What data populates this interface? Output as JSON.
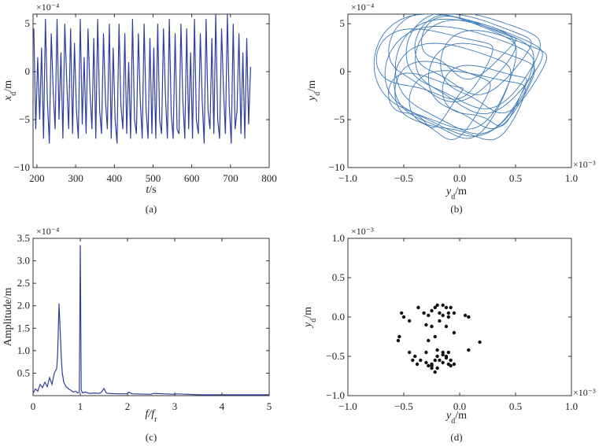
{
  "chart_data": [
    {
      "id": "a",
      "type": "line",
      "caption": "(a)",
      "xlabel": "t/s",
      "ylabel": "x_d/m",
      "y_exponent": "×10⁻⁴",
      "xlim": [
        190,
        800
      ],
      "ylim": [
        -10,
        6
      ],
      "xticks": [
        200,
        300,
        400,
        500,
        600,
        700,
        800
      ],
      "yticks": [
        -10,
        -5,
        0,
        5
      ],
      "color": "#2f3f9e",
      "series": [
        {
          "x": [
            192,
            197,
            202,
            207,
            212,
            217,
            222,
            227,
            232,
            237,
            242,
            247,
            252,
            257,
            262,
            267,
            272,
            277,
            282,
            287,
            292,
            297,
            302,
            307,
            312,
            317,
            322,
            327,
            332,
            337,
            342,
            347,
            352,
            357,
            362,
            367,
            372,
            377,
            382,
            387,
            392,
            397,
            402,
            407,
            412,
            417,
            422,
            427,
            432,
            437,
            442,
            447,
            452,
            457,
            462,
            467,
            472,
            477,
            482,
            487,
            492,
            497,
            502,
            507,
            512,
            517,
            522,
            527,
            532,
            537,
            542,
            547,
            552,
            557,
            562,
            567,
            572,
            577,
            582,
            587,
            592,
            597,
            602,
            607,
            612,
            617,
            622,
            627,
            632,
            637,
            642,
            647,
            652,
            657,
            662,
            667,
            672,
            677,
            682,
            687,
            692,
            697,
            702,
            707,
            712,
            717,
            722,
            727,
            732,
            737,
            742,
            747,
            752
          ],
          "y": [
            4.5,
            -6,
            1.5,
            -5,
            2.5,
            -7,
            5.5,
            -3,
            -7.5,
            4,
            -2,
            -6,
            5.5,
            -5,
            2,
            -7,
            5,
            -1,
            -6,
            4.5,
            -6.5,
            3,
            -4,
            -7,
            5.5,
            -5.5,
            1.5,
            -6.5,
            4.5,
            -2,
            -6,
            3.5,
            -7,
            5.5,
            -4,
            -6.5,
            4,
            -3,
            -6,
            5,
            -7,
            2.5,
            -5,
            -7.5,
            5,
            -3.5,
            -6,
            4,
            -6.5,
            1,
            -7,
            5.5,
            -5,
            -6.5,
            4,
            -3,
            -7,
            5,
            -4,
            -7,
            3.5,
            -6.5,
            2.5,
            -7,
            5,
            -5,
            -6.5,
            4.5,
            -2.5,
            -7,
            5.5,
            -4.5,
            -7,
            4,
            -6,
            -6.5,
            5,
            -3,
            -7,
            4.5,
            -6,
            2,
            -7,
            5.5,
            -5,
            -6.5,
            4,
            -3,
            -7.5,
            5.5,
            -4,
            -6,
            3.5,
            -6.5,
            6,
            -5,
            -7,
            4.5,
            -2,
            -6.5,
            6,
            -3.5,
            -7.5,
            5,
            -6,
            -4,
            4,
            -6.5,
            2,
            -7,
            3.5,
            -5.5,
            0.5
          ]
        }
      ]
    },
    {
      "id": "b",
      "type": "line",
      "caption": "(b)",
      "xlabel": "y_d/m",
      "ylabel": "y_d/m",
      "x_exponent": "×10⁻³",
      "y_exponent": "×10⁻⁴",
      "xlim": [
        -1.0,
        1.0
      ],
      "ylim": [
        -10,
        6
      ],
      "xticks": [
        -1.0,
        -0.5,
        0.0,
        0.5,
        1.0
      ],
      "yticks": [
        -10,
        -5,
        0,
        5
      ],
      "color": "#3d7ab8",
      "loops": [
        {
          "cx": 0.0,
          "cy": -1.0,
          "rx": 0.65,
          "ry": 5.5
        },
        {
          "cx": 0.05,
          "cy": -0.5,
          "rx": 0.6,
          "ry": 5.8
        },
        {
          "cx": -0.1,
          "cy": 1.5,
          "rx": 0.55,
          "ry": 4.2
        },
        {
          "cx": 0.1,
          "cy": 1.8,
          "rx": 0.5,
          "ry": 3.8
        },
        {
          "cx": 0.15,
          "cy": 0.5,
          "rx": 0.55,
          "ry": 4.5
        },
        {
          "cx": -0.05,
          "cy": -2.0,
          "rx": 0.5,
          "ry": 4.8
        },
        {
          "cx": -0.15,
          "cy": -3.0,
          "rx": 0.4,
          "ry": 3.8
        },
        {
          "cx": 0.2,
          "cy": -1.5,
          "rx": 0.45,
          "ry": 4.2
        },
        {
          "cx": -0.3,
          "cy": -3.0,
          "rx": 0.3,
          "ry": 2.5
        },
        {
          "cx": 0.3,
          "cy": 0.0,
          "rx": 0.45,
          "ry": 4.0
        },
        {
          "cx": 0.05,
          "cy": 2.5,
          "rx": 0.4,
          "ry": 2.8
        },
        {
          "cx": -0.2,
          "cy": 0.8,
          "rx": 0.5,
          "ry": 3.5
        },
        {
          "cx": 0.1,
          "cy": -3.5,
          "rx": 0.5,
          "ry": 3.5
        },
        {
          "cx": 0.25,
          "cy": -2.5,
          "rx": 0.35,
          "ry": 3.0
        },
        {
          "cx": -0.1,
          "cy": 0.0,
          "rx": 0.62,
          "ry": 6.0
        },
        {
          "cx": 0.12,
          "cy": 1.2,
          "rx": 0.58,
          "ry": 4.8
        }
      ]
    },
    {
      "id": "c",
      "type": "line",
      "caption": "(c)",
      "xlabel": "f/f_r",
      "ylabel": "Amplitude/m",
      "y_exponent": "×10⁻⁴",
      "xlim": [
        0,
        5
      ],
      "ylim": [
        0,
        3.5
      ],
      "xticks": [
        0,
        1,
        2,
        3,
        4,
        5
      ],
      "yticks": [
        0.5,
        1.0,
        1.5,
        2.0,
        2.5,
        3.0,
        3.5
      ],
      "color": "#2f3f9e",
      "series": [
        {
          "x": [
            0,
            0.05,
            0.1,
            0.15,
            0.2,
            0.25,
            0.3,
            0.35,
            0.4,
            0.45,
            0.5,
            0.52,
            0.55,
            0.58,
            0.6,
            0.62,
            0.65,
            0.7,
            0.75,
            0.8,
            0.85,
            0.9,
            0.95,
            0.98,
            1.0,
            1.02,
            1.05,
            1.1,
            1.2,
            1.3,
            1.4,
            1.45,
            1.5,
            1.55,
            1.6,
            1.8,
            2.0,
            2.02,
            2.1,
            2.5,
            2.55,
            3.0,
            3.02,
            3.5,
            4.0,
            4.5,
            5.0
          ],
          "y": [
            0.05,
            0.15,
            0.1,
            0.25,
            0.18,
            0.3,
            0.2,
            0.4,
            0.25,
            0.5,
            0.6,
            0.9,
            2.05,
            1.3,
            0.8,
            0.5,
            0.3,
            0.2,
            0.15,
            0.12,
            0.08,
            0.1,
            0.06,
            0.08,
            3.35,
            0.12,
            0.06,
            0.08,
            0.05,
            0.06,
            0.05,
            0.08,
            0.16,
            0.06,
            0.05,
            0.04,
            0.04,
            0.08,
            0.04,
            0.03,
            0.05,
            0.03,
            0.04,
            0.02,
            0.02,
            0.02,
            0.02
          ]
        }
      ]
    },
    {
      "id": "d",
      "type": "scatter",
      "caption": "(d)",
      "xlabel": "y_d/m",
      "ylabel": "y_d/m",
      "x_exponent": "×10⁻³",
      "y_exponent": "×10⁻³",
      "xlim": [
        -1.0,
        1.0
      ],
      "ylim": [
        -1.0,
        1.0
      ],
      "xticks": [
        -1.0,
        -0.5,
        0.0,
        0.5,
        1.0
      ],
      "yticks": [
        -1.0,
        -0.5,
        0.0,
        0.5,
        1.0
      ],
      "color": "#111111",
      "series": [
        {
          "x": [
            -0.52,
            -0.5,
            -0.54,
            -0.55,
            -0.45,
            -0.37,
            -0.32,
            -0.28,
            -0.25,
            -0.22,
            -0.2,
            -0.18,
            -0.15,
            -0.12,
            -0.1,
            -0.08,
            -0.05,
            0.05,
            0.08,
            -0.3,
            -0.25,
            -0.18,
            -0.15,
            -0.1,
            -0.05,
            -0.22,
            -0.12,
            -0.28,
            -0.2,
            -0.35,
            -0.4,
            -0.45,
            -0.42,
            -0.38,
            -0.3,
            -0.28,
            -0.25,
            -0.22,
            -0.2,
            -0.15,
            -0.12,
            -0.1,
            -0.2,
            -0.15,
            -0.1,
            -0.25,
            -0.3,
            -0.08,
            0.18,
            0.08,
            -0.08,
            -0.22,
            -0.25,
            -0.18,
            -0.12,
            -0.05,
            -0.15
          ],
          "y": [
            0.05,
            0.0,
            -0.25,
            -0.3,
            -0.05,
            0.12,
            0.05,
            0.02,
            0.08,
            0.12,
            0.15,
            0.05,
            0.15,
            0.12,
            0.05,
            0.12,
            0.05,
            0.02,
            0.0,
            -0.1,
            -0.12,
            -0.05,
            0.02,
            0.0,
            -0.2,
            -0.25,
            -0.12,
            -0.3,
            -0.5,
            -0.55,
            -0.5,
            -0.45,
            -0.55,
            -0.6,
            -0.58,
            -0.62,
            -0.6,
            -0.55,
            -0.65,
            -0.58,
            -0.5,
            -0.45,
            -0.42,
            -0.48,
            -0.6,
            -0.65,
            -0.45,
            -0.62,
            -0.32,
            -0.42,
            -0.55,
            -0.7,
            -0.62,
            -0.55,
            -0.52,
            -0.6,
            -0.45
          ]
        }
      ]
    }
  ]
}
